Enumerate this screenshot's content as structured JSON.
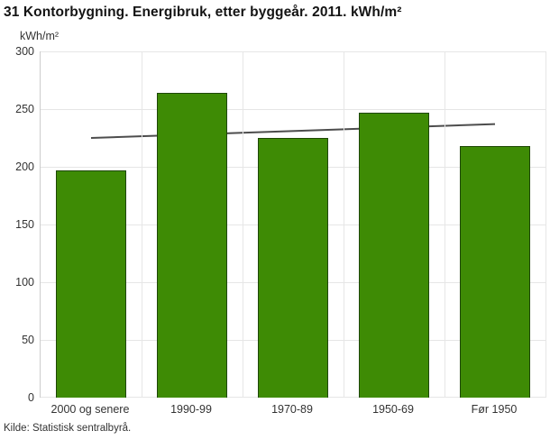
{
  "header": {
    "title": "31 Kontorbygning. Energibruk, etter byggeår. 2011. kWh/m²"
  },
  "source": "Kilde: Statistisk sentralbyrå.",
  "chart_data": {
    "type": "bar",
    "title": "31 Kontorbygning. Energibruk, etter byggeår. 2011. kWh/m²",
    "unit_label": "kWh/m²",
    "xlabel": "",
    "ylabel": "kWh/m²",
    "categories": [
      "2000 og senere",
      "1990-99",
      "1970-89",
      "1950-69",
      "Før 1950"
    ],
    "values": [
      197,
      264,
      225,
      247,
      218
    ],
    "yticks": [
      300,
      250,
      200,
      150,
      100,
      50,
      0
    ],
    "ylim": [
      0,
      300
    ],
    "grid": true,
    "legend_position": "none",
    "bar_color": "#3e8b05",
    "bar_border_color": "#1e4703",
    "trendline": {
      "start_value": 225,
      "end_value": 237,
      "color": "#4d4d4d"
    }
  }
}
